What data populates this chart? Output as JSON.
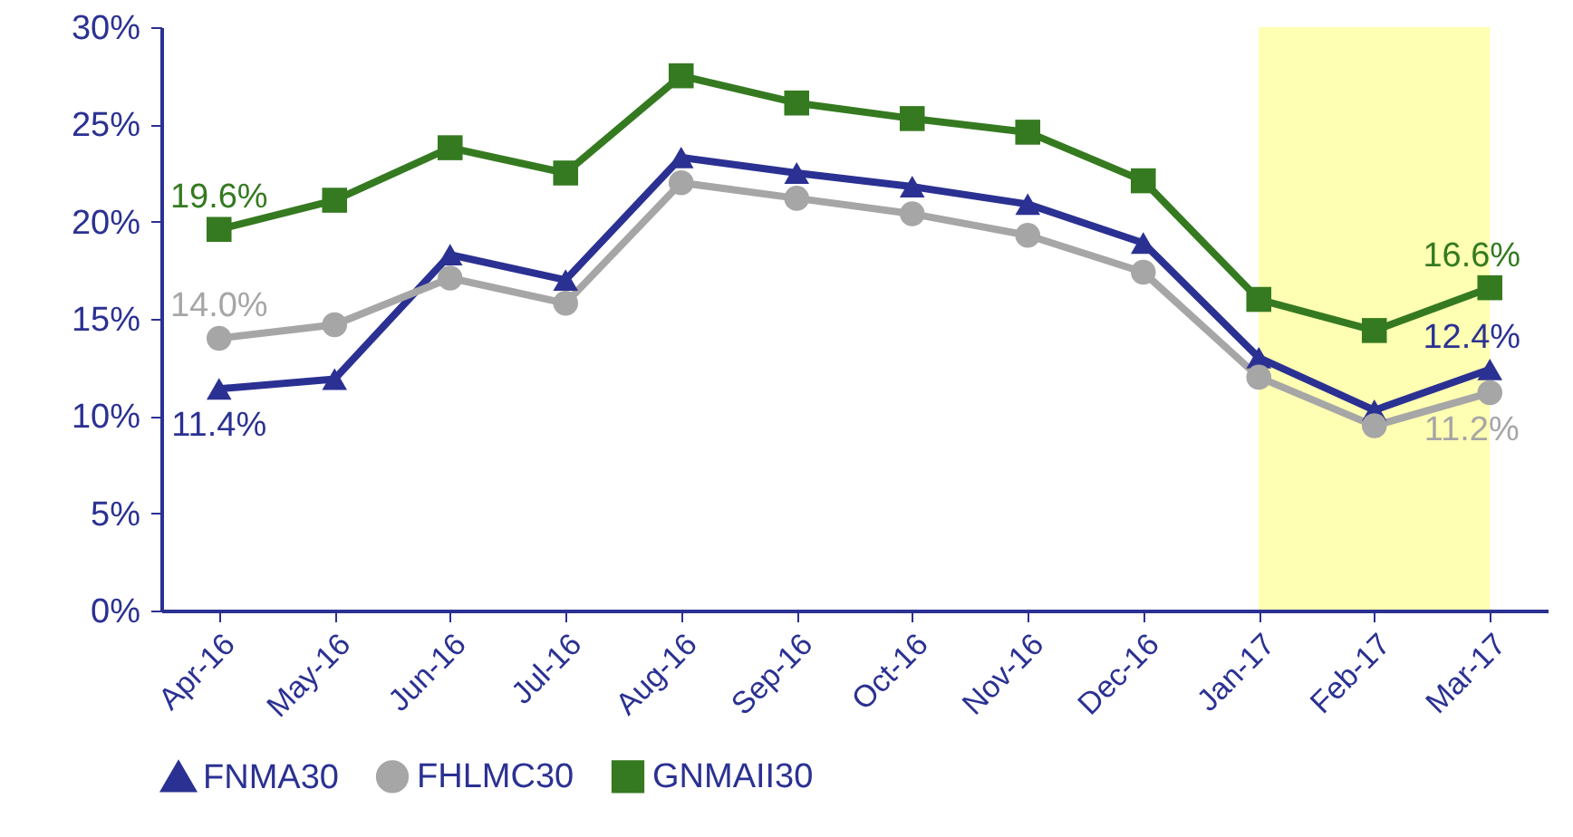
{
  "chart_data": {
    "type": "line",
    "categories": [
      "Apr-16",
      "May-16",
      "Jun-16",
      "Jul-16",
      "Aug-16",
      "Sep-16",
      "Oct-16",
      "Nov-16",
      "Dec-16",
      "Jan-17",
      "Feb-17",
      "Mar-17"
    ],
    "series": [
      {
        "name": "FNMA30",
        "color": "#2b3192",
        "marker": "triangle",
        "values": [
          11.4,
          11.9,
          18.3,
          17.0,
          23.3,
          22.5,
          21.8,
          20.9,
          18.9,
          13.0,
          10.3,
          12.4
        ],
        "value_labels": [
          "11.4%",
          null,
          null,
          null,
          null,
          null,
          null,
          null,
          null,
          null,
          null,
          "12.4%"
        ]
      },
      {
        "name": "FHLMC30",
        "color": "#a6a6a6",
        "marker": "circle",
        "values": [
          14.0,
          14.7,
          17.1,
          15.8,
          22.0,
          21.2,
          20.4,
          19.3,
          17.4,
          12.0,
          9.5,
          11.2
        ],
        "value_labels": [
          "14.0%",
          null,
          null,
          null,
          null,
          null,
          null,
          null,
          null,
          null,
          null,
          "11.2%"
        ]
      },
      {
        "name": "GNMAII30",
        "color": "#357a20",
        "marker": "square",
        "values": [
          19.6,
          21.1,
          23.8,
          22.5,
          27.5,
          26.1,
          25.3,
          24.6,
          22.1,
          16.0,
          14.4,
          16.6
        ],
        "value_labels": [
          "19.6%",
          null,
          null,
          null,
          null,
          null,
          null,
          null,
          null,
          null,
          null,
          "16.6%"
        ]
      }
    ],
    "ylim": [
      0,
      30
    ],
    "yticks": [
      {
        "value": 0,
        "label": "0%"
      },
      {
        "value": 5,
        "label": "5%"
      },
      {
        "value": 10,
        "label": "10%"
      },
      {
        "value": 15,
        "label": "15%"
      },
      {
        "value": 20,
        "label": "20%"
      },
      {
        "value": 25,
        "label": "25%"
      },
      {
        "value": 30,
        "label": "30%"
      }
    ],
    "bands": [
      {
        "axis": "x",
        "from": "Jan-17",
        "to": "Mar-17",
        "color": "#ffffb3"
      }
    ],
    "grid": false,
    "legend": "bottom",
    "line_style": "solid"
  }
}
